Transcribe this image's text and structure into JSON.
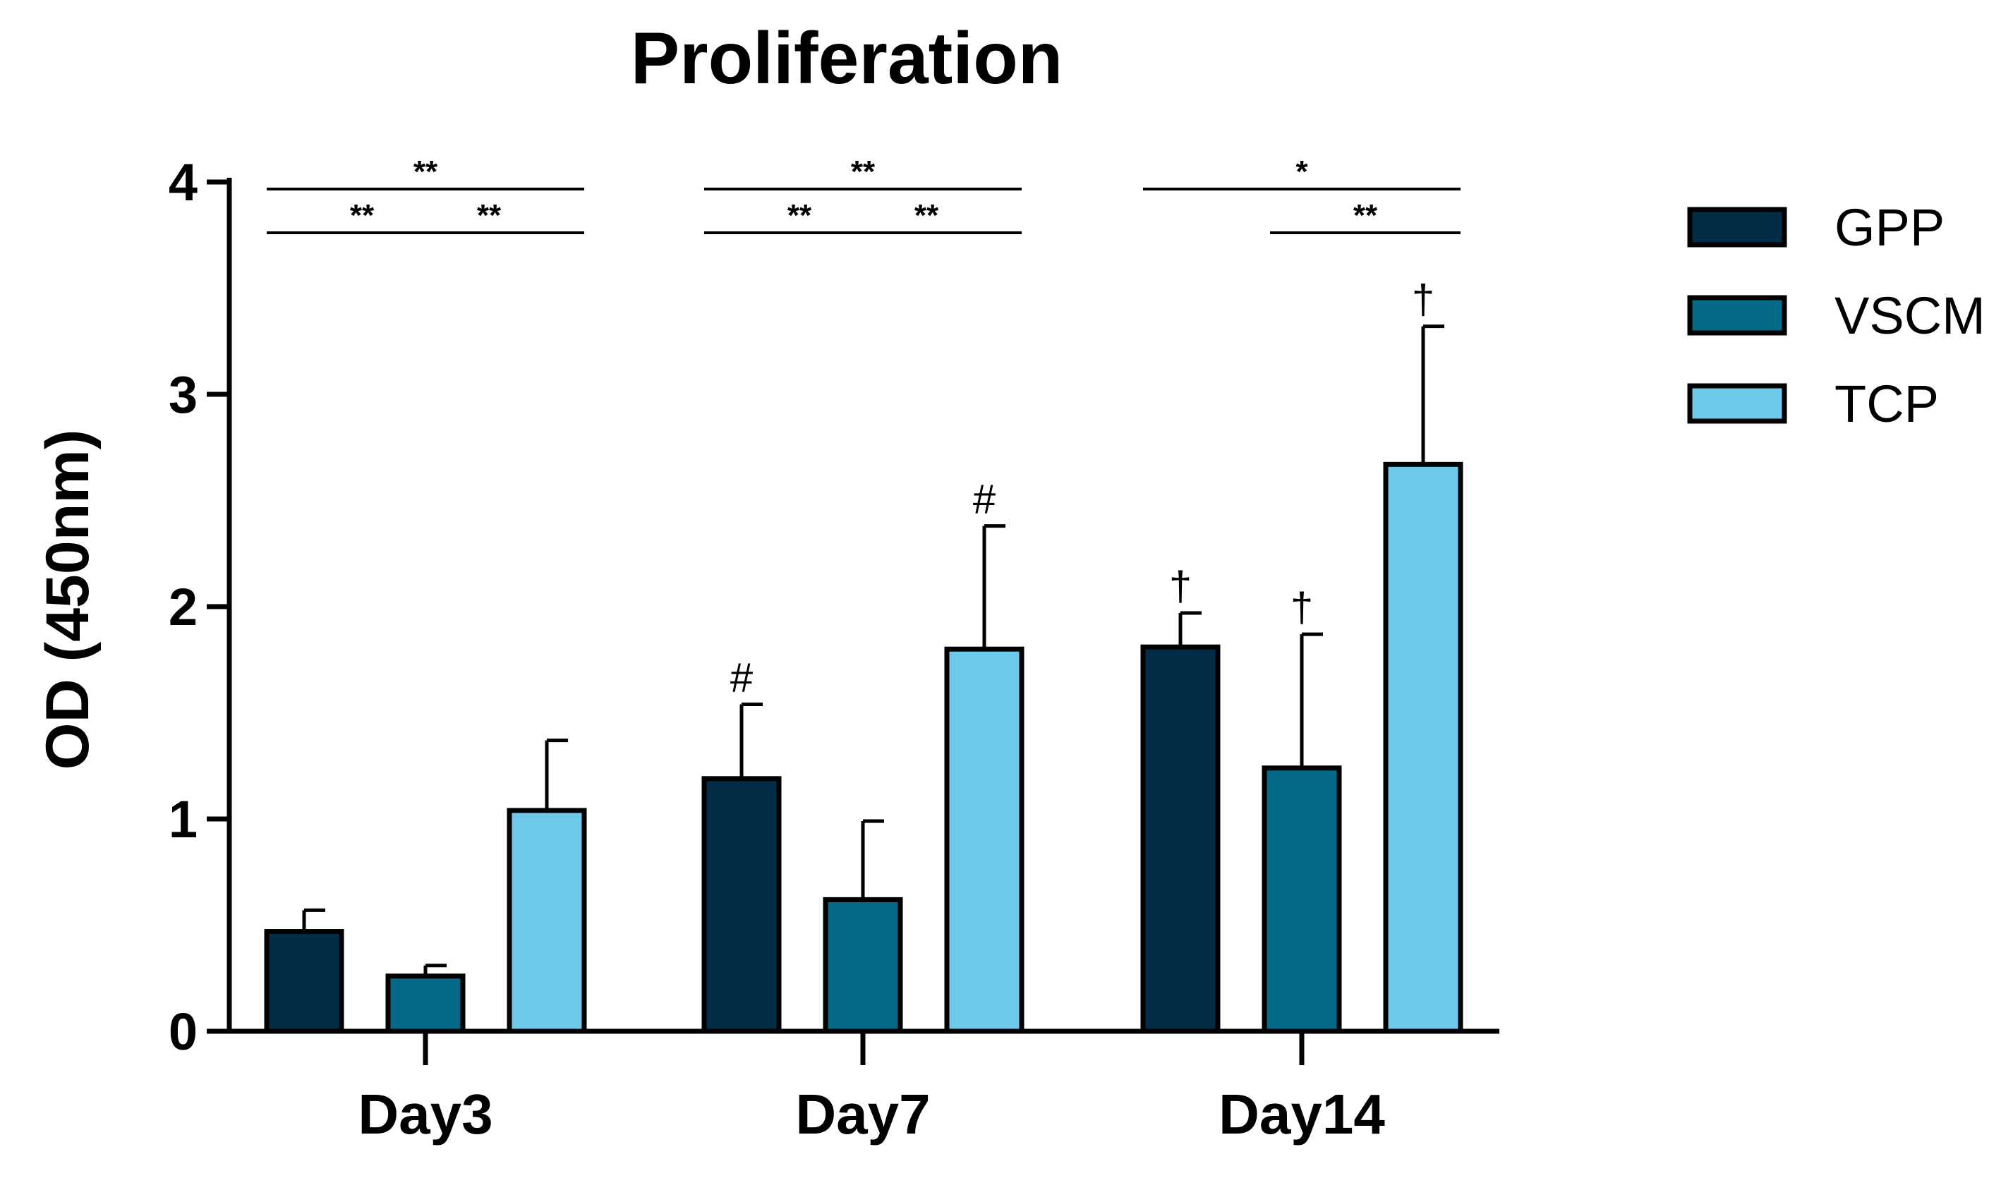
{
  "chart_data": {
    "type": "bar",
    "title": "Proliferation",
    "xlabel": "",
    "ylabel": "OD (450nm)",
    "ylim": [
      0,
      4
    ],
    "yticks": [
      "0",
      "1",
      "2",
      "3",
      "4"
    ],
    "categories": [
      "Day3",
      "Day7",
      "Day14"
    ],
    "series": [
      {
        "name": "GPP",
        "color": "#032d47",
        "values": [
          0.47,
          1.19,
          1.81
        ],
        "errors": [
          0.1,
          0.35,
          0.16
        ]
      },
      {
        "name": "VSCM",
        "color": "#056a88",
        "values": [
          0.26,
          0.62,
          1.24
        ],
        "errors": [
          0.05,
          0.37,
          0.63
        ]
      },
      {
        "name": "TCP",
        "color": "#6ec8ea",
        "values": [
          1.04,
          1.8,
          2.67
        ],
        "errors": [
          0.33,
          0.58,
          0.65
        ]
      }
    ],
    "point_annotations": [
      {
        "category": "Day7",
        "series": "GPP",
        "text": "#"
      },
      {
        "category": "Day7",
        "series": "TCP",
        "text": "#"
      },
      {
        "category": "Day14",
        "series": "GPP",
        "text": "†"
      },
      {
        "category": "Day14",
        "series": "VSCM",
        "text": "†"
      },
      {
        "category": "Day14",
        "series": "TCP",
        "text": "†"
      }
    ],
    "significance": [
      {
        "category": "Day3",
        "from": "GPP",
        "to": "TCP",
        "text": "**",
        "level": 2
      },
      {
        "category": "Day3",
        "from": "GPP",
        "to": "VSCM",
        "text": "**",
        "level": 1
      },
      {
        "category": "Day3",
        "from": "VSCM",
        "to": "TCP",
        "text": "**",
        "level": 1
      },
      {
        "category": "Day7",
        "from": "GPP",
        "to": "TCP",
        "text": "**",
        "level": 2
      },
      {
        "category": "Day7",
        "from": "GPP",
        "to": "VSCM",
        "text": "**",
        "level": 1
      },
      {
        "category": "Day7",
        "from": "VSCM",
        "to": "TCP",
        "text": "**",
        "level": 1
      },
      {
        "category": "Day14",
        "from": "GPP",
        "to": "TCP",
        "text": "*",
        "level": 2
      },
      {
        "category": "Day14",
        "from": "VSCM",
        "to": "TCP",
        "text": "**",
        "level": 1
      }
    ],
    "legend_position": "right"
  }
}
